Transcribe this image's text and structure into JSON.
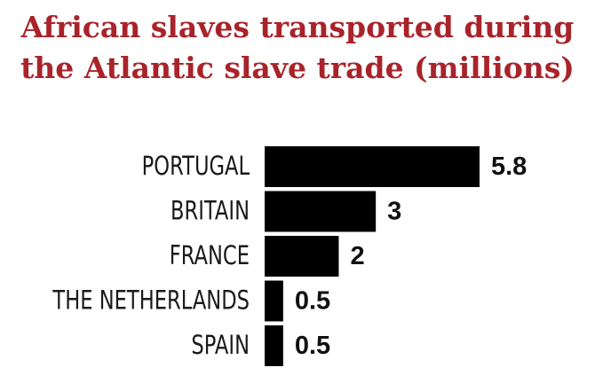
{
  "title": {
    "line1": "African slaves transported during",
    "line2": "the Atlantic slave trade (millions)"
  },
  "colors": {
    "title": "#a9232a",
    "bar": "#000000",
    "label": "#1a1a1a"
  },
  "chart_data": {
    "type": "bar",
    "orientation": "horizontal",
    "title": "African slaves transported during the Atlantic slave trade (millions)",
    "categories": [
      "PORTUGAL",
      "BRITAIN",
      "FRANCE",
      "THE NETHERLANDS",
      "SPAIN"
    ],
    "values": [
      5.8,
      3,
      2,
      0.5,
      0.5
    ],
    "value_labels": [
      "5.8",
      "3",
      "2",
      "0.5",
      "0.5"
    ],
    "xlim": [
      0,
      5.8
    ],
    "grid": false,
    "legend": "none"
  }
}
